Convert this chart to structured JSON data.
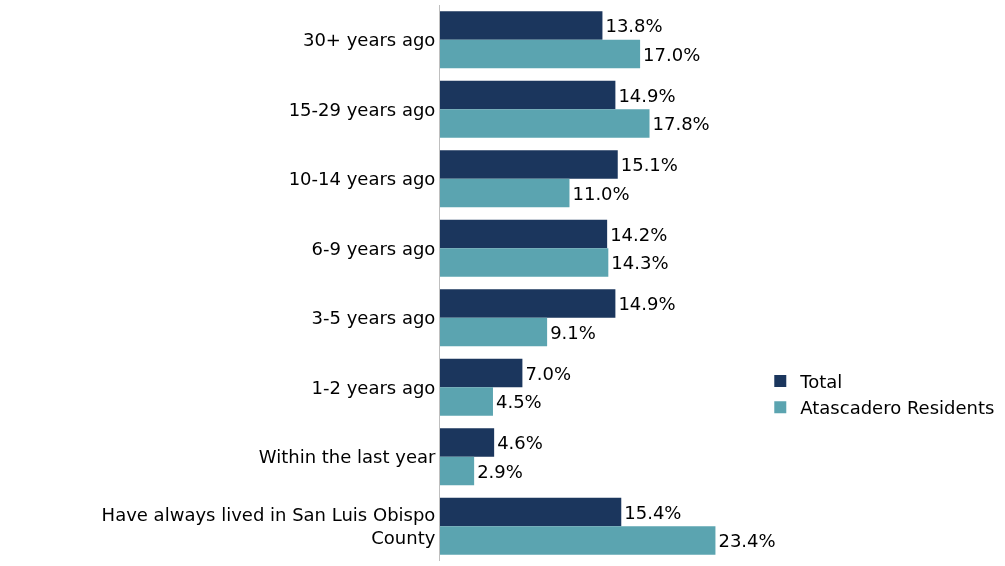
{
  "chart_data": {
    "type": "bar",
    "orientation": "horizontal",
    "categories": [
      "30+ years ago",
      "15-29 years ago",
      "10-14 years ago",
      "6-9 years ago",
      "3-5 years ago",
      "1-2 years ago",
      "Within the last year",
      "Have always lived in San Luis Obispo County"
    ],
    "series": [
      {
        "name": "Total",
        "color": "#1b365d",
        "values": [
          13.8,
          14.9,
          15.1,
          14.2,
          14.9,
          7.0,
          4.6,
          15.4
        ],
        "value_labels": [
          "13.8%",
          "14.9%",
          "15.1%",
          "14.2%",
          "14.9%",
          "7.0%",
          "4.6%",
          "15.4%"
        ]
      },
      {
        "name": "Atascadero Residents",
        "color": "#5ba4b0",
        "values": [
          17.0,
          17.8,
          11.0,
          14.3,
          9.1,
          4.5,
          2.9,
          23.4
        ],
        "value_labels": [
          "17.0%",
          "17.8%",
          "11.0%",
          "14.3%",
          "9.1%",
          "4.5%",
          "2.9%",
          "23.4%"
        ]
      }
    ],
    "legend": "right",
    "tick_labels": "y"
  }
}
